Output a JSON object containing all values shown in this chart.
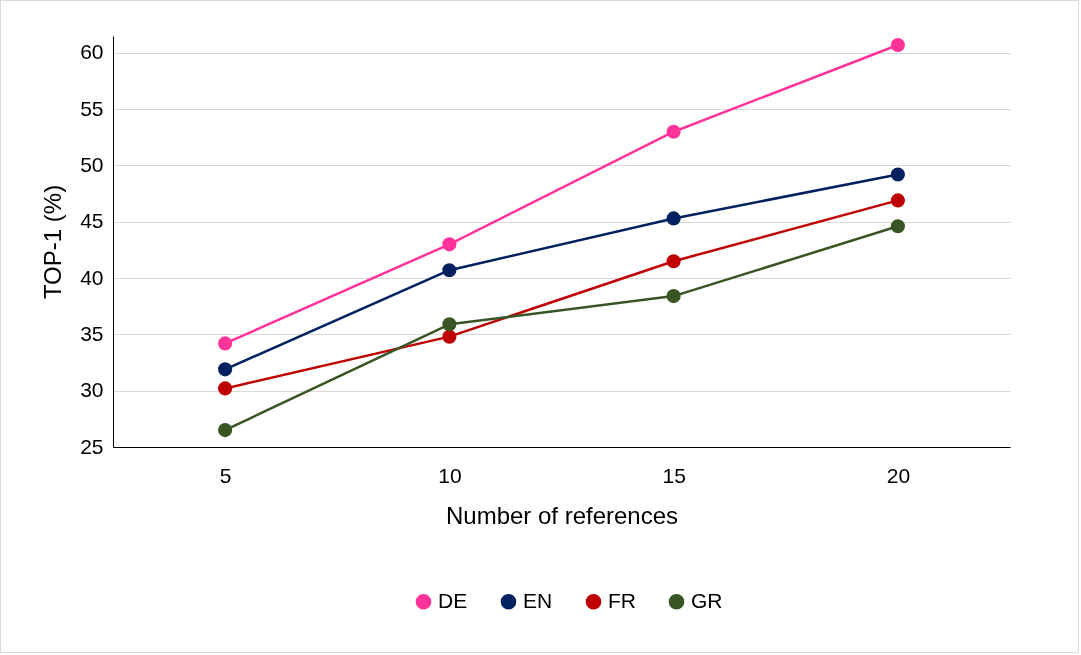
{
  "chart_data": {
    "type": "line",
    "xlabel": "Number of references",
    "ylabel": "TOP-1 (%)",
    "categories": [
      "5",
      "10",
      "15",
      "20"
    ],
    "series": [
      {
        "name": "DE",
        "color": "#ff3399",
        "values": [
          34.2,
          43.0,
          53.0,
          60.7
        ]
      },
      {
        "name": "EN",
        "color": "#002060",
        "values": [
          31.9,
          40.7,
          45.3,
          49.2
        ]
      },
      {
        "name": "FR",
        "color": "#c00000",
        "values": [
          30.2,
          34.8,
          41.5,
          46.9
        ]
      },
      {
        "name": "GR",
        "color": "#375623",
        "values": [
          26.5,
          35.9,
          38.4,
          44.6
        ]
      }
    ],
    "ylim": [
      25,
      61.5
    ],
    "yticks": [
      25,
      30,
      35,
      40,
      45,
      50,
      55,
      60
    ],
    "grid": "y",
    "legend": "bottom",
    "marker": "circle",
    "line_style": "solid"
  }
}
